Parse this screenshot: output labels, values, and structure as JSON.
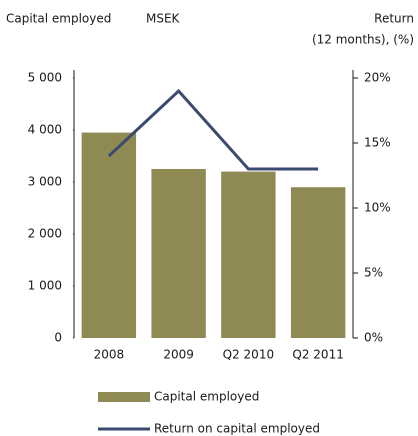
{
  "chart_data": {
    "type": "bar_line",
    "y_label": "Capital employed",
    "unit": "MSEK",
    "y2_label": [
      "Return",
      "(12 months), (%)"
    ],
    "categories": [
      "2008",
      "2009",
      "Q2 2010",
      "Q2 2011"
    ],
    "series": [
      {
        "name": "Capital employed",
        "type": "bar",
        "color": "#8f8a53",
        "values": [
          3950,
          3250,
          3200,
          2900
        ]
      },
      {
        "name": "Return on capital employed",
        "type": "line",
        "axis": "y2",
        "color": "#3b4a6f",
        "values": [
          14,
          19,
          13,
          13
        ]
      }
    ],
    "ylim": [
      0,
      5000
    ],
    "yticks": [
      0,
      {
        "value": 1000,
        "label": "1 000"
      },
      {
        "value": 2000,
        "label": "2 000"
      },
      {
        "value": 3000,
        "label": "3 000"
      },
      {
        "value": 4000,
        "label": "4 000"
      },
      {
        "value": 5000,
        "label": "5 000"
      }
    ],
    "y2lim": [
      0,
      20
    ],
    "y2ticks": [
      {
        "value": 0,
        "label": "0%"
      },
      {
        "value": 5,
        "label": "5%"
      },
      {
        "value": 10,
        "label": "10%"
      },
      {
        "value": 15,
        "label": "15%"
      },
      {
        "value": 20,
        "label": "20%"
      }
    ],
    "legend": "bottom"
  }
}
